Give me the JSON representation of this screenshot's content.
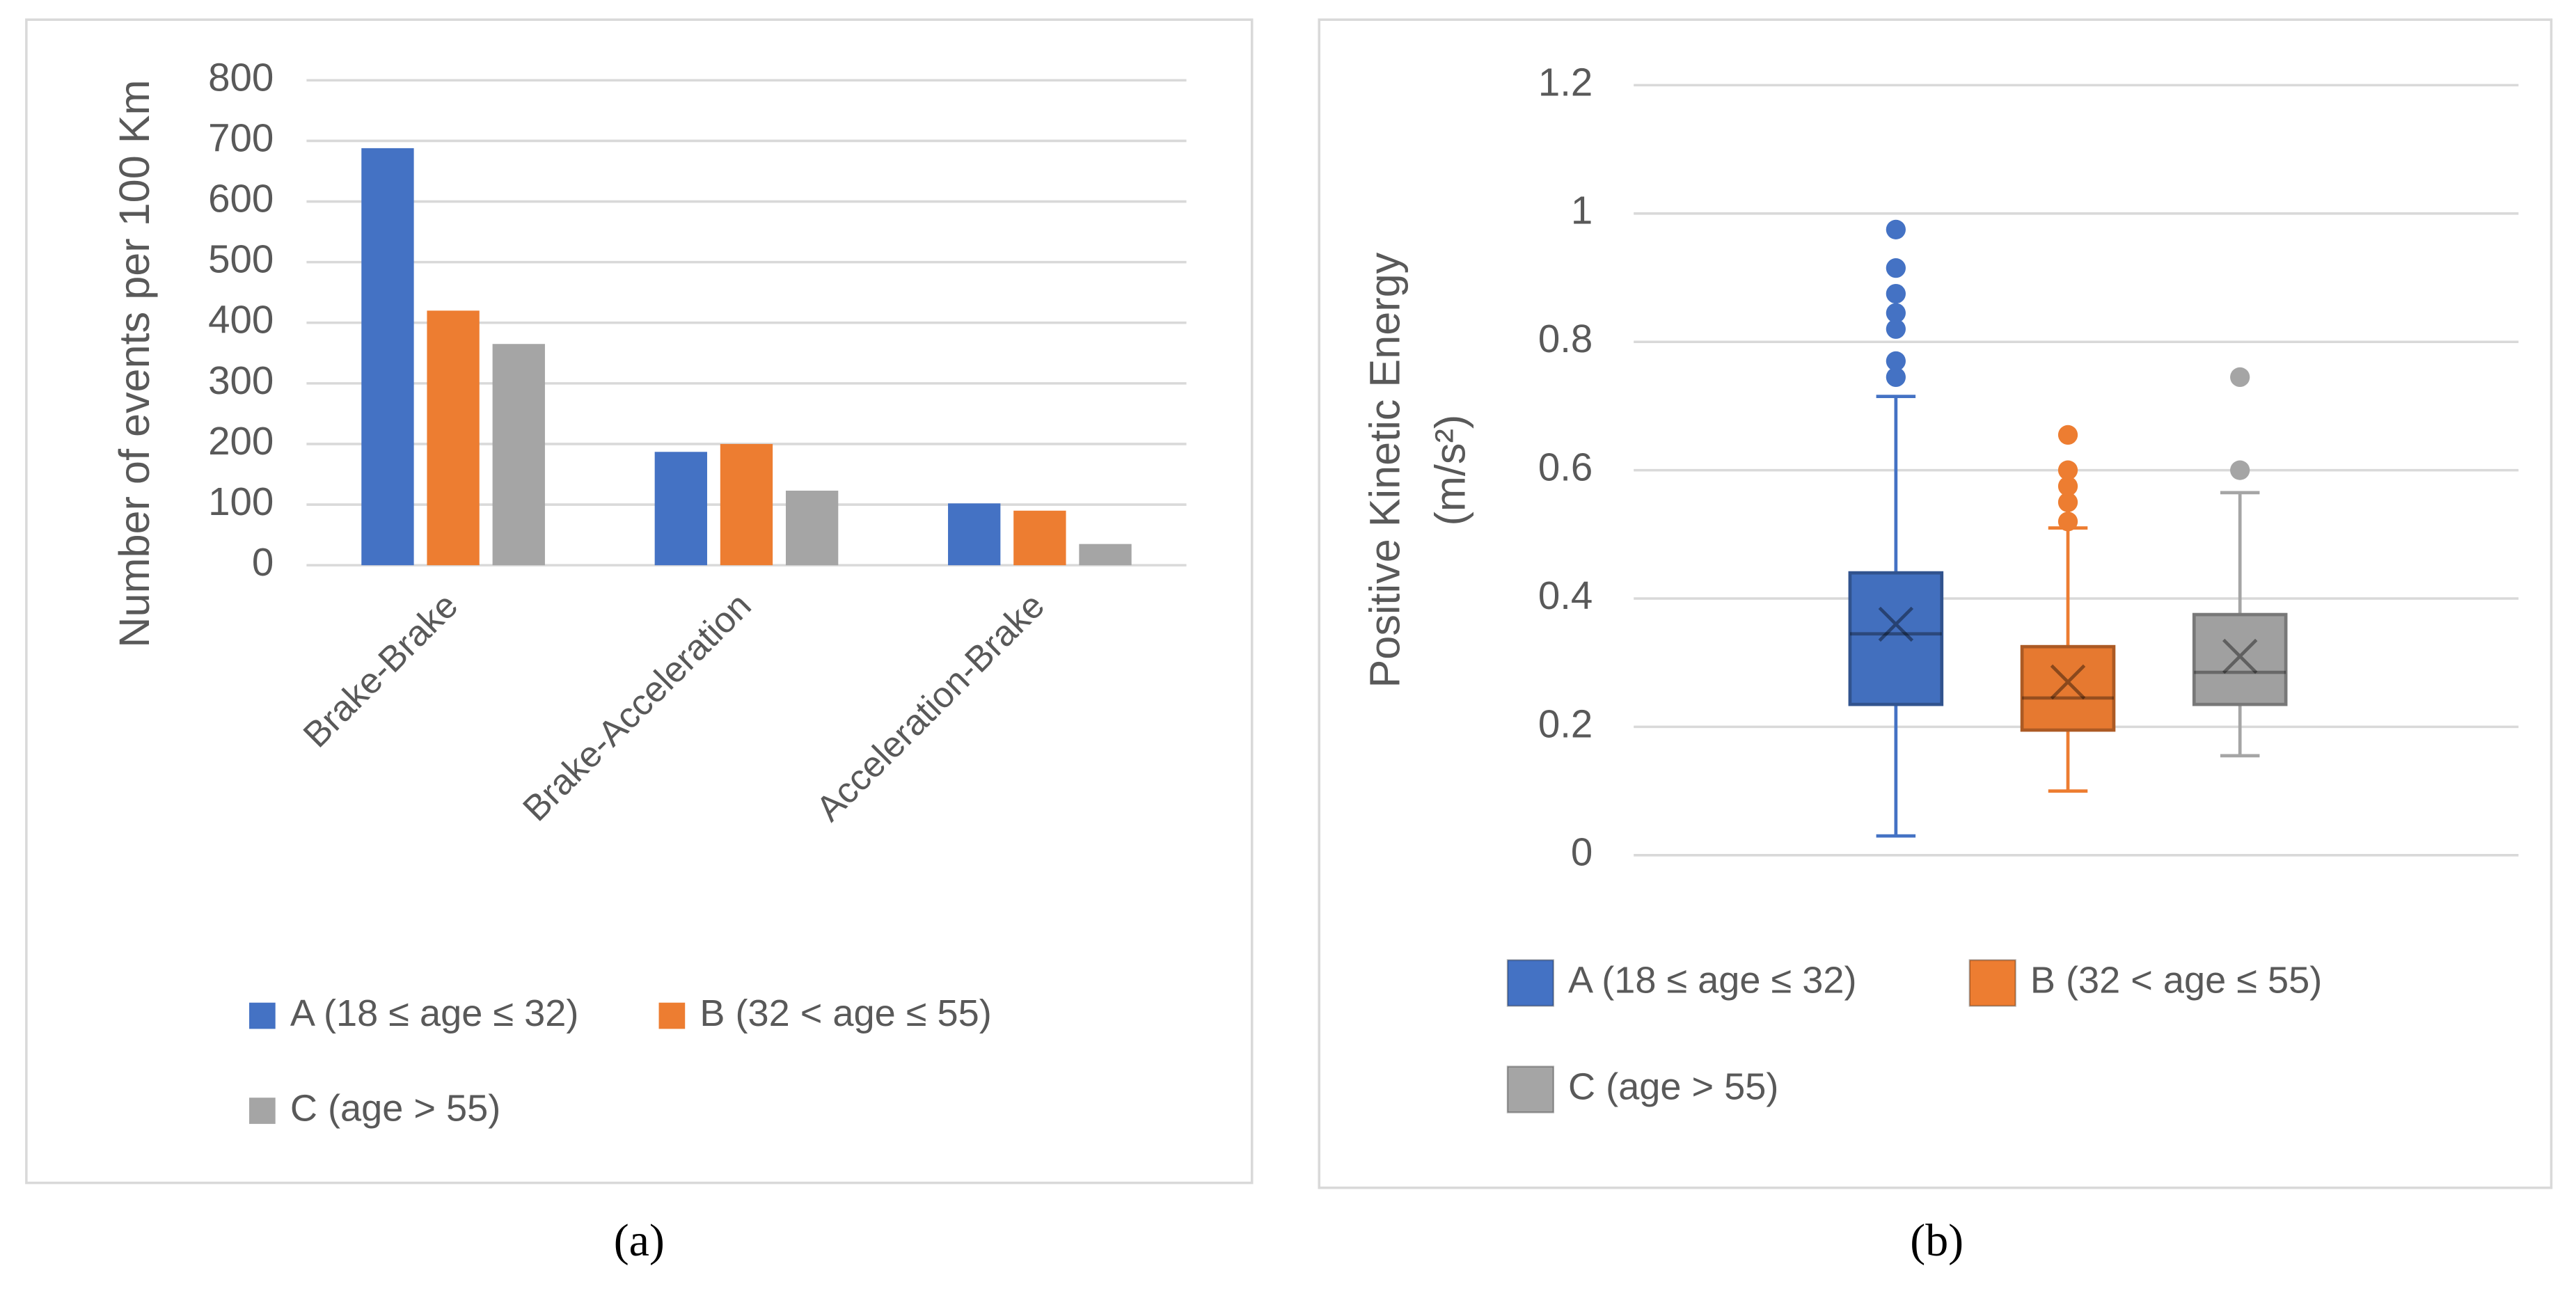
{
  "chart_data": [
    {
      "type": "bar",
      "panel_label": "(a)",
      "y_label": "Number of events per 100 Km",
      "categories": [
        "Brake-Brake",
        "Brake-Acceleration",
        "Acceleration-Brake"
      ],
      "series": [
        {
          "name": "A (18 ≤ age ≤ 32)",
          "color": "#4472c4",
          "values": [
            688,
            187,
            102
          ]
        },
        {
          "name": "B (32 < age ≤ 55)",
          "color": "#ed7d31",
          "values": [
            420,
            200,
            90
          ]
        },
        {
          "name": "C (age > 55)",
          "color": "#a5a5a5",
          "values": [
            365,
            123,
            35
          ]
        }
      ],
      "ylim": [
        0,
        800
      ],
      "yticks": [
        0,
        100,
        200,
        300,
        400,
        500,
        600,
        700,
        800
      ],
      "grid": true,
      "legend": "bottom"
    },
    {
      "type": "box",
      "panel_label": "(b)",
      "y_label": [
        "Positive Kinetic Energy",
        "(m/s²)"
      ],
      "series": [
        {
          "name": "A (18 ≤ age ≤ 32)",
          "color": "#4472c4",
          "min": 0.03,
          "q1": 0.235,
          "median": 0.345,
          "q3": 0.44,
          "max": 0.715,
          "mean": 0.36,
          "outliers": [
            0.745,
            0.77,
            0.82,
            0.845,
            0.875,
            0.915,
            0.975
          ]
        },
        {
          "name": "B (32 < age ≤ 55)",
          "color": "#ed7d31",
          "min": 0.1,
          "q1": 0.195,
          "median": 0.245,
          "q3": 0.325,
          "max": 0.51,
          "mean": 0.27,
          "outliers": [
            0.52,
            0.55,
            0.575,
            0.6,
            0.655
          ]
        },
        {
          "name": "C (age > 55)",
          "color": "#a5a5a5",
          "min": 0.155,
          "q1": 0.235,
          "median": 0.285,
          "q3": 0.375,
          "max": 0.565,
          "mean": 0.31,
          "outliers": [
            0.6,
            0.745
          ]
        }
      ],
      "ylim": [
        0,
        1.2
      ],
      "yticks": [
        0,
        0.2,
        0.4,
        0.6,
        0.8,
        1,
        1.2
      ],
      "grid": true,
      "legend": "bottom"
    }
  ]
}
